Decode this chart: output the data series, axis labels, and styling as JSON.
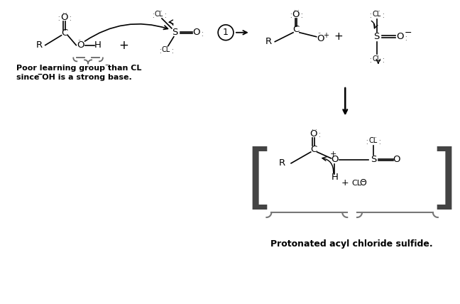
{
  "background": "#ffffff",
  "label_poor1": "Poor learning group than CL",
  "label_poor2": "since ̅OH is a strong base.",
  "label_bottom": "Protonated acyl chloride sulfide.",
  "fig_width": 6.48,
  "fig_height": 4.28,
  "dpi": 100
}
